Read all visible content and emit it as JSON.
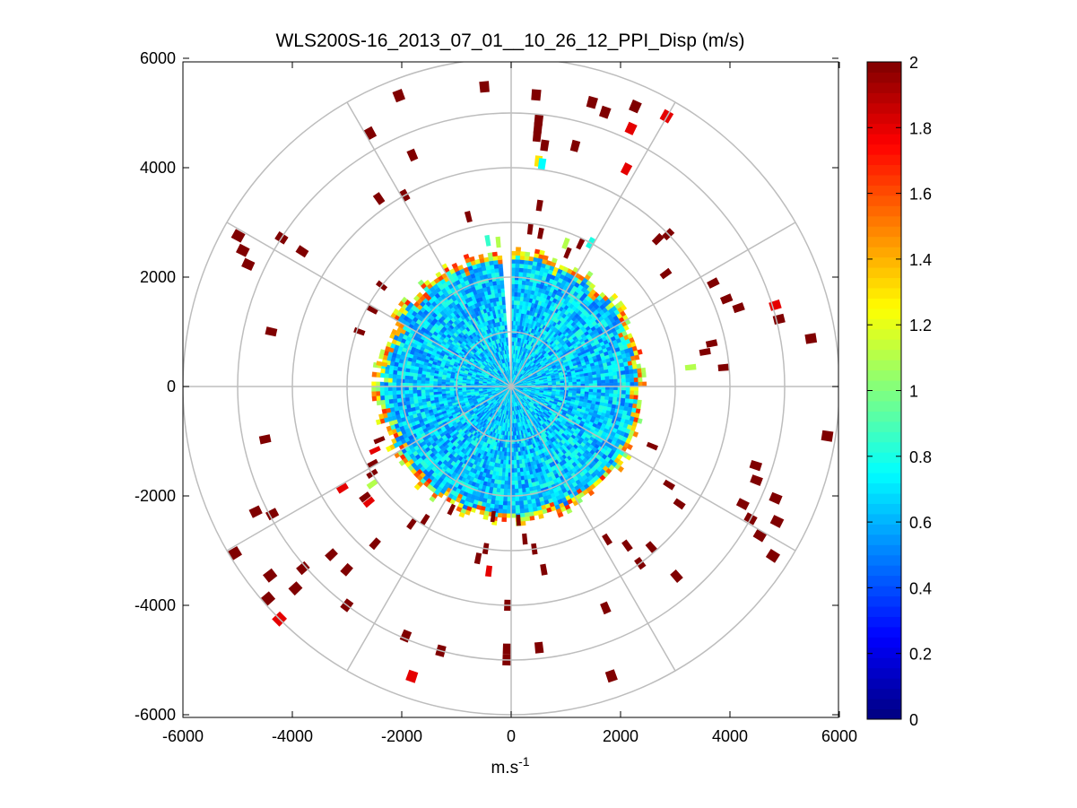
{
  "chart_data": {
    "type": "heatmap",
    "subtype": "polar-ppi",
    "title": "WLS200S-16_2013_07_01__10_26_12_PPI_Disp (m/s)",
    "xlabel_base": "m.s",
    "xlabel_exp": "-1",
    "ylabel": "",
    "xlim": [
      -6000,
      6000
    ],
    "ylim": [
      -6000,
      6000
    ],
    "x_ticks": [
      -6000,
      -4000,
      -2000,
      0,
      2000,
      4000,
      6000
    ],
    "y_ticks": [
      6000,
      4000,
      2000,
      0,
      -2000,
      -4000,
      -6000
    ],
    "x_tick_labels": [
      "-6000",
      "-4000",
      "-2000",
      "0",
      "2000",
      "4000",
      "6000"
    ],
    "y_tick_labels": [
      "6000",
      "4000",
      "2000",
      "0",
      "-2000",
      "-4000",
      "-6000"
    ],
    "polar_grid_radii": [
      1000,
      2000,
      3000,
      4000,
      5000,
      6000
    ],
    "polar_grid_spokes_deg": [
      0,
      30,
      60,
      90,
      120,
      150,
      180,
      210,
      240,
      270,
      300,
      330
    ],
    "colorbar": {
      "colormap": "jet",
      "min": 0,
      "max": 2,
      "ticks": [
        0,
        0.2,
        0.4,
        0.6,
        0.8,
        1,
        1.2,
        1.4,
        1.6,
        1.8,
        2
      ],
      "tick_labels": [
        "0",
        "0.2",
        "0.4",
        "0.6",
        "0.8",
        "1",
        "1.2",
        "1.4",
        "1.6",
        "1.8",
        "2"
      ]
    },
    "dense_region": {
      "max_range": 2400,
      "gap_azimuth_deg": [
        356,
        0
      ],
      "typical_value_range": [
        0.45,
        0.85
      ],
      "edge_values_range": [
        1.0,
        1.7
      ]
    },
    "sparse_returns": [
      {
        "az": -6,
        "r": 5400,
        "v": 2
      },
      {
        "az": 4,
        "r": 5250,
        "v": 2
      },
      {
        "az": 5,
        "r": 4800,
        "v": 2
      },
      {
        "az": 5,
        "r": 4650,
        "v": 2
      },
      {
        "az": 5,
        "r": 4500,
        "v": 2
      },
      {
        "az": 7,
        "r": 4350,
        "v": 2
      },
      {
        "az": 6,
        "r": 4050,
        "v": 1.3
      },
      {
        "az": 7,
        "r": 4010,
        "v": 0.75
      },
      {
        "az": 15,
        "r": 5300,
        "v": 2
      },
      {
        "az": 23,
        "r": 5500,
        "v": 2
      },
      {
        "az": 24,
        "r": 5100,
        "v": 1.8
      },
      {
        "az": 29,
        "r": 5600,
        "v": 1.8
      },
      {
        "az": 14,
        "r": 4450,
        "v": 2
      },
      {
        "az": 27,
        "r": 4400,
        "v": 1.8
      },
      {
        "az": 18,
        "r": 5200,
        "v": 2
      },
      {
        "az": -22,
        "r": 5600,
        "v": 2
      },
      {
        "az": -30,
        "r": 5200,
        "v": 2
      },
      {
        "az": -24,
        "r": 4500,
        "v": 2
      },
      {
        "az": -30,
        "r": 3900,
        "v": 2
      },
      {
        "az": -36,
        "r": 4100,
        "v": 2
      },
      {
        "az": -15,
        "r": 3100,
        "v": 2
      },
      {
        "az": 8,
        "r": 3250,
        "v": 2
      },
      {
        "az": 6,
        "r": 2800,
        "v": 2
      },
      {
        "az": 10,
        "r": 2750,
        "v": 2
      },
      {
        "az": 20,
        "r": 2700,
        "v": 1.1
      },
      {
        "az": 28,
        "r": 2900,
        "v": 0.8
      },
      {
        "az": 25,
        "r": 2800,
        "v": 2
      },
      {
        "az": 22,
        "r": 2550,
        "v": 2
      },
      {
        "az": 44,
        "r": 3700,
        "v": 2
      },
      {
        "az": 45,
        "r": 3900,
        "v": 2
      },
      {
        "az": 53,
        "r": 3400,
        "v": 2
      },
      {
        "az": -10,
        "r": 2600,
        "v": 0.85
      },
      {
        "az": -6,
        "r": 2550,
        "v": 1.1
      },
      {
        "az": -62,
        "r": 5600,
        "v": 2
      },
      {
        "az": -64,
        "r": 5400,
        "v": 2
      },
      {
        "az": -66,
        "r": 5200,
        "v": 2
      },
      {
        "az": -58,
        "r": 4900,
        "v": 2
      },
      {
        "az": -58,
        "r": 4450,
        "v": 2
      },
      {
        "az": -53,
        "r": 2900,
        "v": 2
      },
      {
        "az": -62,
        "r": 2800,
        "v": 2
      },
      {
        "az": -78,
        "r": 4400,
        "v": 2
      },
      {
        "az": -71,
        "r": 2850,
        "v": 2
      },
      {
        "az": -81,
        "r": 2300,
        "v": 1.4
      },
      {
        "az": 62,
        "r": 4050,
        "v": 2
      },
      {
        "az": 67,
        "r": 4150,
        "v": 2
      },
      {
        "az": 70,
        "r": 4300,
        "v": 2
      },
      {
        "az": 72,
        "r": 4950,
        "v": 1.8
      },
      {
        "az": 75,
        "r": 4950,
        "v": 2
      },
      {
        "az": 80,
        "r": 5450,
        "v": 2
      },
      {
        "az": 77,
        "r": 3650,
        "v": 2
      },
      {
        "az": 79,
        "r": 3500,
        "v": 2
      },
      {
        "az": 83,
        "r": 3200,
        "v": 1.1
      },
      {
        "az": 84,
        "r": 3800,
        "v": 2
      },
      {
        "az": 98,
        "r": 5750,
        "v": 2
      },
      {
        "az": 116,
        "r": 5350,
        "v": 2
      },
      {
        "az": 112,
        "r": 5150,
        "v": 2
      },
      {
        "az": 120,
        "r": 5200,
        "v": 2
      },
      {
        "az": 122,
        "r": 5600,
        "v": 2
      },
      {
        "az": 107,
        "r": 4600,
        "v": 2
      },
      {
        "az": 110,
        "r": 4700,
        "v": 2
      },
      {
        "az": 116,
        "r": 4650,
        "v": 2
      },
      {
        "az": 118,
        "r": 4900,
        "v": 2
      },
      {
        "az": 121,
        "r": 3300,
        "v": 2
      },
      {
        "az": 124,
        "r": 3650,
        "v": 2
      },
      {
        "az": 112,
        "r": 2700,
        "v": 2
      },
      {
        "az": 138,
        "r": 3800,
        "v": 2
      },
      {
        "az": 143,
        "r": 3500,
        "v": 2
      },
      {
        "az": 138,
        "r": 4500,
        "v": 2
      },
      {
        "az": 143,
        "r": 3900,
        "v": 2
      },
      {
        "az": 147,
        "r": 3200,
        "v": 2
      },
      {
        "az": 156,
        "r": 4300,
        "v": 2
      },
      {
        "az": 160,
        "r": 5500,
        "v": 2
      },
      {
        "az": 173,
        "r": 4700,
        "v": 2
      },
      {
        "az": 169,
        "r": 3300,
        "v": 2
      },
      {
        "az": 171,
        "r": 2900,
        "v": 2
      },
      {
        "az": 174,
        "r": 2700,
        "v": 2
      },
      {
        "az": 176,
        "r": 2350,
        "v": 2
      },
      {
        "az": 180,
        "r": 3900,
        "v": 2
      },
      {
        "az": 180,
        "r": 4700,
        "v": 2
      },
      {
        "az": 180,
        "r": 4900,
        "v": 2
      },
      {
        "az": 186,
        "r": 3300,
        "v": 1.8
      },
      {
        "az": 190,
        "r": 3100,
        "v": 2
      },
      {
        "az": 188,
        "r": 2900,
        "v": 2
      },
      {
        "az": 187,
        "r": 2300,
        "v": 2
      },
      {
        "az": 194,
        "r": 4900,
        "v": 2
      },
      {
        "az": 202,
        "r": 4850,
        "v": 2
      },
      {
        "az": 198,
        "r": 5500,
        "v": 1.8
      },
      {
        "az": 205,
        "r": 2400,
        "v": 2
      },
      {
        "az": 212,
        "r": 2800,
        "v": 2
      },
      {
        "az": 215,
        "r": 3000,
        "v": 2
      },
      {
        "az": 220,
        "r": 3700,
        "v": 2
      },
      {
        "az": 221,
        "r": 4400,
        "v": 2
      },
      {
        "az": 216,
        "r": 4900,
        "v": 2
      },
      {
        "az": 226,
        "r": 4400,
        "v": 2
      },
      {
        "az": 224,
        "r": 5900,
        "v": 1.8
      },
      {
        "az": 228,
        "r": 5800,
        "v": 2
      },
      {
        "az": 231,
        "r": 5500,
        "v": 2
      },
      {
        "az": 226,
        "r": 5300,
        "v": 2
      },
      {
        "az": 228,
        "r": 4950,
        "v": 2
      },
      {
        "az": 230,
        "r": 3250,
        "v": 1.8
      },
      {
        "az": 234,
        "r": 3000,
        "v": 1.1
      },
      {
        "az": 232,
        "r": 3250,
        "v": 2
      },
      {
        "az": 237,
        "r": 2900,
        "v": 2
      },
      {
        "az": 238,
        "r": 3500,
        "v": 1.8
      },
      {
        "az": 243,
        "r": 5100,
        "v": 2
      },
      {
        "az": 241,
        "r": 4850,
        "v": 2
      },
      {
        "az": 240,
        "r": 2800,
        "v": 2
      },
      {
        "az": 244,
        "r": 2650,
        "v": 1.8
      },
      {
        "az": 247,
        "r": 2500,
        "v": 2
      },
      {
        "az": 257,
        "r": 4500,
        "v": 2
      },
      {
        "az": 238,
        "r": 5800,
        "v": 2
      }
    ]
  }
}
